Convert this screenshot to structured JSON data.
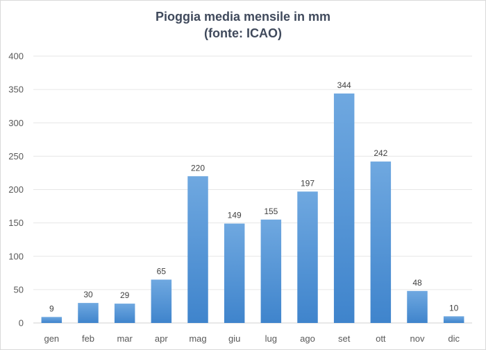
{
  "chart_data": {
    "type": "bar",
    "title": [
      "Pioggia media mensile in mm",
      "(fonte: ICAO)"
    ],
    "categories": [
      "gen",
      "feb",
      "mar",
      "apr",
      "mag",
      "giu",
      "lug",
      "ago",
      "set",
      "ott",
      "nov",
      "dic"
    ],
    "values": [
      9,
      30,
      29,
      65,
      220,
      149,
      155,
      197,
      344,
      242,
      48,
      10
    ],
    "ylim": [
      0,
      400
    ],
    "yticks": [
      0,
      50,
      100,
      150,
      200,
      250,
      300,
      350,
      400
    ],
    "grid": true,
    "legend": "none",
    "bar_color_top": "#6fa8e0",
    "bar_color_bottom": "#3f84cc",
    "grid_color": "#e6e6e6"
  }
}
